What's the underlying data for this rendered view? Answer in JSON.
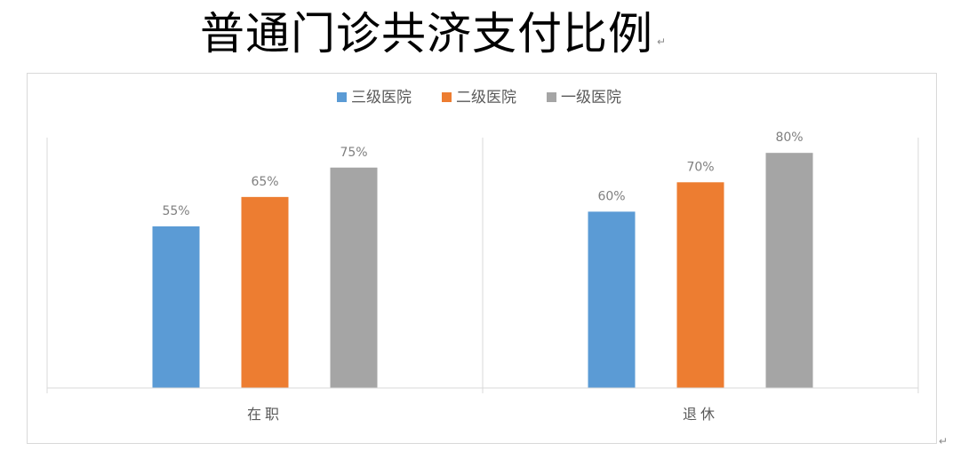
{
  "chart_data": {
    "type": "bar",
    "title": "普通门诊共济支付比例",
    "categories": [
      "在职",
      "退休"
    ],
    "series": [
      {
        "name": "三级医院",
        "values": [
          55,
          60
        ],
        "color": "#5b9bd5"
      },
      {
        "name": "二级医院",
        "values": [
          65,
          70
        ],
        "color": "#ed7d31"
      },
      {
        "name": "一级医院",
        "values": [
          75,
          80
        ],
        "color": "#a5a5a5"
      }
    ],
    "value_suffix": "%",
    "ylim": [
      0,
      100
    ],
    "legend_position": "top",
    "grid": false,
    "separators": "vertical lines between categories"
  },
  "marks": {
    "title_paragraph_mark": "↵",
    "corner_paragraph_mark": "↵"
  }
}
